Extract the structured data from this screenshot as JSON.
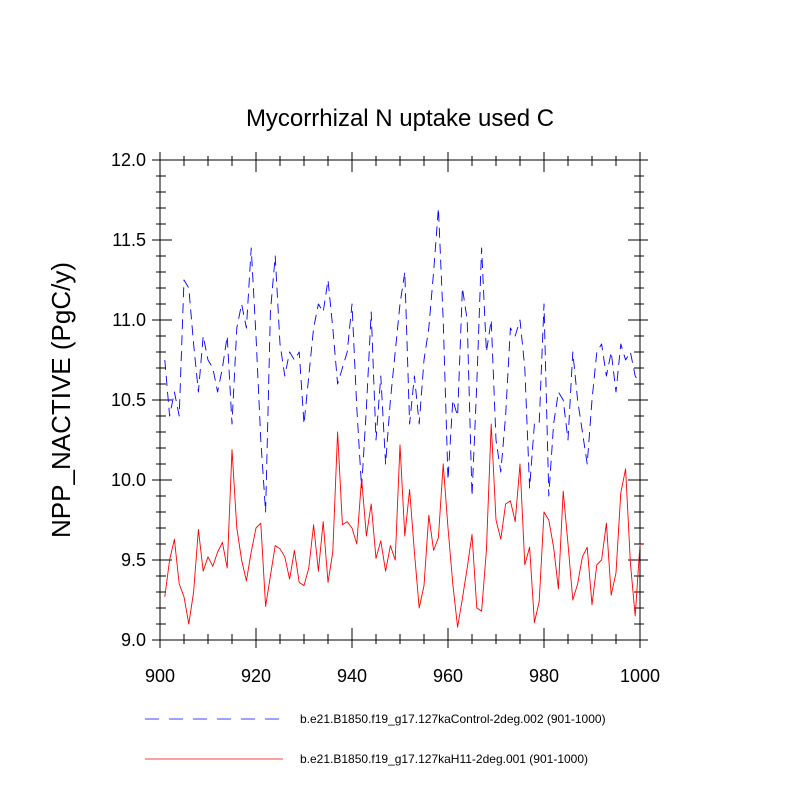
{
  "chart_data": {
    "type": "line",
    "title": "Mycorrhizal N uptake used C",
    "xlabel": "",
    "ylabel": "NPP_NACTIVE  (PgC/y)",
    "xlim": [
      900,
      1000
    ],
    "ylim": [
      9.0,
      12.0
    ],
    "x_ticks": [
      "900",
      "920",
      "940",
      "960",
      "980",
      "1000"
    ],
    "y_ticks": [
      "9.0",
      "9.5",
      "10.0",
      "10.5",
      "11.0",
      "11.5",
      "12.0"
    ],
    "legend_position": "bottom",
    "x": [
      901,
      902,
      903,
      904,
      905,
      906,
      907,
      908,
      909,
      910,
      911,
      912,
      913,
      914,
      915,
      916,
      917,
      918,
      919,
      920,
      921,
      922,
      923,
      924,
      925,
      926,
      927,
      928,
      929,
      930,
      931,
      932,
      933,
      934,
      935,
      936,
      937,
      938,
      939,
      940,
      941,
      942,
      943,
      944,
      945,
      946,
      947,
      948,
      949,
      950,
      951,
      952,
      953,
      954,
      955,
      956,
      957,
      958,
      959,
      960,
      961,
      962,
      963,
      964,
      965,
      966,
      967,
      968,
      969,
      970,
      971,
      972,
      973,
      974,
      975,
      976,
      977,
      978,
      979,
      980,
      981,
      982,
      983,
      984,
      985,
      986,
      987,
      988,
      989,
      990,
      991,
      992,
      993,
      994,
      995,
      996,
      997,
      998,
      999,
      1000
    ],
    "series": [
      {
        "name": "b.e21.B1850.f19_g17.127kaControl-2deg.002 (901-1000)",
        "color": "#0000ff",
        "style": "dashed",
        "values": [
          10.75,
          10.4,
          10.55,
          10.4,
          11.25,
          11.2,
          10.85,
          10.55,
          10.9,
          10.75,
          10.7,
          10.55,
          10.7,
          10.9,
          10.35,
          10.95,
          11.1,
          10.95,
          11.45,
          10.9,
          10.25,
          9.8,
          11.05,
          11.4,
          10.85,
          10.65,
          10.8,
          10.75,
          10.8,
          10.35,
          10.65,
          10.95,
          11.1,
          11.05,
          11.25,
          10.95,
          10.6,
          10.7,
          10.8,
          11.1,
          10.45,
          9.95,
          10.45,
          11.05,
          10.25,
          10.65,
          10.1,
          10.5,
          10.8,
          11.1,
          11.3,
          10.35,
          10.65,
          10.35,
          10.75,
          10.95,
          11.3,
          11.7,
          11.0,
          10.0,
          10.5,
          10.4,
          11.2,
          11.0,
          9.9,
          10.6,
          11.45,
          10.8,
          11.0,
          10.25,
          10.05,
          10.4,
          10.95,
          10.9,
          11.0,
          10.7,
          9.95,
          10.35,
          10.35,
          11.1,
          9.9,
          10.35,
          10.55,
          10.5,
          10.25,
          10.8,
          10.5,
          10.3,
          10.1,
          10.5,
          10.8,
          10.85,
          10.65,
          10.8,
          10.55,
          10.85,
          10.75,
          10.8,
          10.65,
          10.6
        ]
      },
      {
        "name": "b.e21.B1850.f19_g17.127kaH11-2deg.001 (901-1000)",
        "color": "#ff0000",
        "style": "solid",
        "values": [
          9.27,
          9.5,
          9.63,
          9.35,
          9.27,
          9.1,
          9.3,
          9.69,
          9.43,
          9.52,
          9.46,
          9.55,
          9.61,
          9.45,
          10.19,
          9.7,
          9.5,
          9.37,
          9.55,
          9.7,
          9.73,
          9.21,
          9.4,
          9.59,
          9.57,
          9.52,
          9.38,
          9.56,
          9.36,
          9.34,
          9.45,
          9.72,
          9.43,
          9.74,
          9.36,
          9.55,
          10.3,
          9.72,
          9.74,
          9.7,
          9.6,
          10.01,
          9.65,
          9.85,
          9.51,
          9.62,
          9.43,
          9.59,
          9.5,
          10.22,
          9.65,
          9.94,
          9.55,
          9.2,
          9.34,
          9.78,
          9.56,
          9.64,
          10.1,
          9.7,
          9.35,
          9.08,
          9.26,
          9.45,
          9.66,
          9.2,
          9.18,
          9.56,
          10.35,
          9.75,
          9.63,
          9.85,
          9.87,
          9.74,
          10.1,
          9.47,
          9.58,
          9.11,
          9.24,
          9.8,
          9.75,
          9.58,
          9.32,
          9.93,
          9.6,
          9.25,
          9.35,
          9.52,
          9.58,
          9.22,
          9.47,
          9.5,
          9.73,
          9.28,
          9.42,
          9.92,
          10.07,
          9.48,
          9.15,
          9.6
        ]
      }
    ]
  }
}
